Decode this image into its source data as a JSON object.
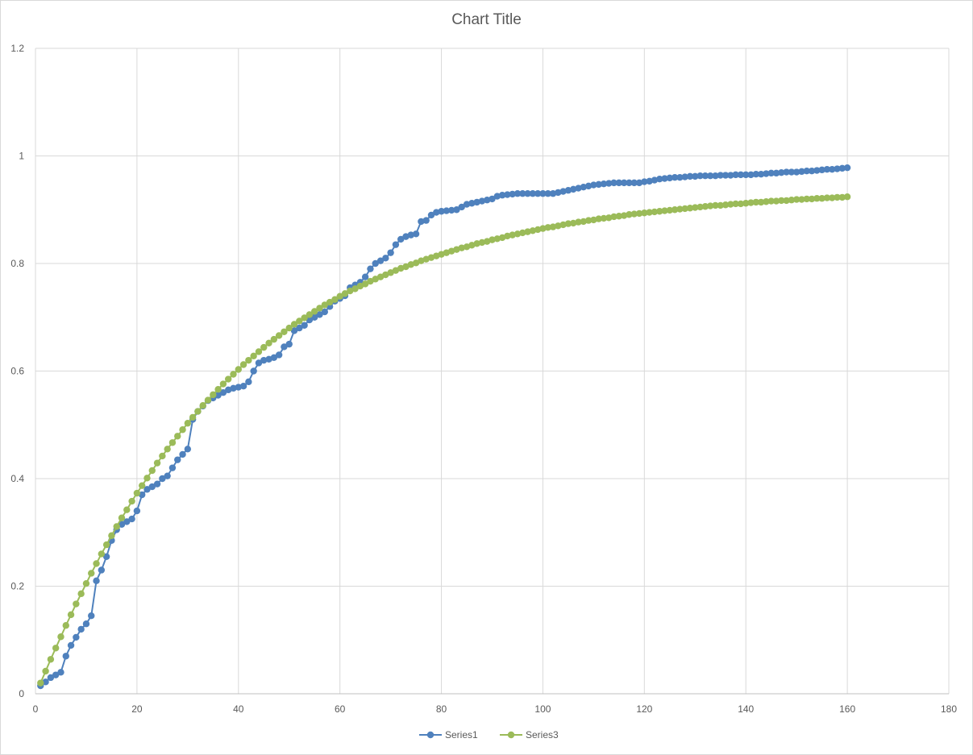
{
  "chart_data": {
    "type": "line",
    "title": "Chart Title",
    "xlabel": "",
    "ylabel": "",
    "xlim": [
      0,
      180
    ],
    "ylim": [
      0,
      1.2
    ],
    "x_ticks": [
      0,
      20,
      40,
      60,
      80,
      100,
      120,
      140,
      160,
      180
    ],
    "y_ticks": [
      0,
      0.2,
      0.4,
      0.6,
      0.8,
      1,
      1.2
    ],
    "x_tick_labels": [
      "0",
      "20",
      "40",
      "60",
      "80",
      "100",
      "120",
      "140",
      "160",
      "180"
    ],
    "y_tick_labels": [
      "0",
      "0.2",
      "0.4",
      "0.6",
      "0.8",
      "1",
      "1.2"
    ],
    "grid": true,
    "legend_position": "bottom",
    "series": [
      {
        "name": "Series1",
        "color": "#4f81bd",
        "points": [
          [
            1,
            0.015
          ],
          [
            2,
            0.022
          ],
          [
            3,
            0.03
          ],
          [
            4,
            0.035
          ],
          [
            5,
            0.04
          ],
          [
            6,
            0.07
          ],
          [
            7,
            0.09
          ],
          [
            8,
            0.105
          ],
          [
            9,
            0.12
          ],
          [
            10,
            0.13
          ],
          [
            11,
            0.145
          ],
          [
            12,
            0.21
          ],
          [
            13,
            0.23
          ],
          [
            14,
            0.255
          ],
          [
            15,
            0.285
          ],
          [
            16,
            0.305
          ],
          [
            17,
            0.315
          ],
          [
            18,
            0.32
          ],
          [
            19,
            0.325
          ],
          [
            20,
            0.34
          ],
          [
            21,
            0.37
          ],
          [
            22,
            0.38
          ],
          [
            23,
            0.385
          ],
          [
            24,
            0.39
          ],
          [
            25,
            0.4
          ],
          [
            26,
            0.405
          ],
          [
            27,
            0.42
          ],
          [
            28,
            0.435
          ],
          [
            29,
            0.445
          ],
          [
            30,
            0.455
          ],
          [
            31,
            0.51
          ],
          [
            32,
            0.525
          ],
          [
            33,
            0.535
          ],
          [
            34,
            0.545
          ],
          [
            35,
            0.55
          ],
          [
            36,
            0.555
          ],
          [
            37,
            0.56
          ],
          [
            38,
            0.565
          ],
          [
            39,
            0.568
          ],
          [
            40,
            0.57
          ],
          [
            41,
            0.572
          ],
          [
            42,
            0.58
          ],
          [
            43,
            0.6
          ],
          [
            44,
            0.615
          ],
          [
            45,
            0.62
          ],
          [
            46,
            0.622
          ],
          [
            47,
            0.625
          ],
          [
            48,
            0.63
          ],
          [
            49,
            0.645
          ],
          [
            50,
            0.65
          ],
          [
            51,
            0.675
          ],
          [
            52,
            0.68
          ],
          [
            53,
            0.685
          ],
          [
            54,
            0.695
          ],
          [
            55,
            0.7
          ],
          [
            56,
            0.705
          ],
          [
            57,
            0.71
          ],
          [
            58,
            0.72
          ],
          [
            59,
            0.73
          ],
          [
            60,
            0.735
          ],
          [
            61,
            0.74
          ],
          [
            62,
            0.755
          ],
          [
            63,
            0.76
          ],
          [
            64,
            0.765
          ],
          [
            65,
            0.775
          ],
          [
            66,
            0.79
          ],
          [
            67,
            0.8
          ],
          [
            68,
            0.805
          ],
          [
            69,
            0.81
          ],
          [
            70,
            0.82
          ],
          [
            71,
            0.835
          ],
          [
            72,
            0.845
          ],
          [
            73,
            0.85
          ],
          [
            74,
            0.853
          ],
          [
            75,
            0.855
          ],
          [
            76,
            0.878
          ],
          [
            77,
            0.88
          ],
          [
            78,
            0.89
          ],
          [
            79,
            0.895
          ],
          [
            80,
            0.897
          ],
          [
            81,
            0.898
          ],
          [
            82,
            0.899
          ],
          [
            83,
            0.9
          ],
          [
            84,
            0.905
          ],
          [
            85,
            0.91
          ],
          [
            86,
            0.912
          ],
          [
            87,
            0.914
          ],
          [
            88,
            0.916
          ],
          [
            89,
            0.918
          ],
          [
            90,
            0.92
          ],
          [
            91,
            0.925
          ],
          [
            92,
            0.927
          ],
          [
            93,
            0.928
          ],
          [
            94,
            0.929
          ],
          [
            95,
            0.93
          ],
          [
            96,
            0.93
          ],
          [
            97,
            0.93
          ],
          [
            98,
            0.93
          ],
          [
            99,
            0.93
          ],
          [
            100,
            0.93
          ],
          [
            101,
            0.93
          ],
          [
            102,
            0.93
          ],
          [
            103,
            0.932
          ],
          [
            104,
            0.934
          ],
          [
            105,
            0.936
          ],
          [
            106,
            0.938
          ],
          [
            107,
            0.94
          ],
          [
            108,
            0.942
          ],
          [
            109,
            0.944
          ],
          [
            110,
            0.946
          ],
          [
            111,
            0.947
          ],
          [
            112,
            0.948
          ],
          [
            113,
            0.949
          ],
          [
            114,
            0.95
          ],
          [
            115,
            0.95
          ],
          [
            116,
            0.95
          ],
          [
            117,
            0.95
          ],
          [
            118,
            0.95
          ],
          [
            119,
            0.95
          ],
          [
            120,
            0.952
          ],
          [
            121,
            0.953
          ],
          [
            122,
            0.955
          ],
          [
            123,
            0.957
          ],
          [
            124,
            0.958
          ],
          [
            125,
            0.959
          ],
          [
            126,
            0.96
          ],
          [
            127,
            0.96
          ],
          [
            128,
            0.961
          ],
          [
            129,
            0.962
          ],
          [
            130,
            0.962
          ],
          [
            131,
            0.963
          ],
          [
            132,
            0.963
          ],
          [
            133,
            0.963
          ],
          [
            134,
            0.963
          ],
          [
            135,
            0.964
          ],
          [
            136,
            0.964
          ],
          [
            137,
            0.964
          ],
          [
            138,
            0.965
          ],
          [
            139,
            0.965
          ],
          [
            140,
            0.965
          ],
          [
            141,
            0.965
          ],
          [
            142,
            0.966
          ],
          [
            143,
            0.966
          ],
          [
            144,
            0.967
          ],
          [
            145,
            0.968
          ],
          [
            146,
            0.968
          ],
          [
            147,
            0.969
          ],
          [
            148,
            0.97
          ],
          [
            149,
            0.97
          ],
          [
            150,
            0.97
          ],
          [
            151,
            0.971
          ],
          [
            152,
            0.972
          ],
          [
            153,
            0.972
          ],
          [
            154,
            0.973
          ],
          [
            155,
            0.974
          ],
          [
            156,
            0.975
          ],
          [
            157,
            0.975
          ],
          [
            158,
            0.976
          ],
          [
            159,
            0.977
          ],
          [
            160,
            0.978
          ]
        ]
      },
      {
        "name": "Series3",
        "color": "#9bbb59",
        "points": [
          [
            1,
            0.02
          ],
          [
            2,
            0.042
          ],
          [
            3,
            0.064
          ],
          [
            4,
            0.085
          ],
          [
            5,
            0.106
          ],
          [
            6,
            0.127
          ],
          [
            7,
            0.147
          ],
          [
            8,
            0.167
          ],
          [
            9,
            0.186
          ],
          [
            10,
            0.205
          ],
          [
            11,
            0.224
          ],
          [
            12,
            0.242
          ],
          [
            13,
            0.26
          ],
          [
            14,
            0.277
          ],
          [
            15,
            0.294
          ],
          [
            16,
            0.311
          ],
          [
            17,
            0.327
          ],
          [
            18,
            0.342
          ],
          [
            19,
            0.358
          ],
          [
            20,
            0.373
          ],
          [
            21,
            0.387
          ],
          [
            22,
            0.401
          ],
          [
            23,
            0.415
          ],
          [
            24,
            0.429
          ],
          [
            25,
            0.442
          ],
          [
            26,
            0.455
          ],
          [
            27,
            0.467
          ],
          [
            28,
            0.479
          ],
          [
            29,
            0.491
          ],
          [
            30,
            0.503
          ],
          [
            31,
            0.514
          ],
          [
            32,
            0.525
          ],
          [
            33,
            0.536
          ],
          [
            34,
            0.546
          ],
          [
            35,
            0.556
          ],
          [
            36,
            0.566
          ],
          [
            37,
            0.576
          ],
          [
            38,
            0.585
          ],
          [
            39,
            0.594
          ],
          [
            40,
            0.603
          ],
          [
            41,
            0.612
          ],
          [
            42,
            0.62
          ],
          [
            43,
            0.628
          ],
          [
            44,
            0.636
          ],
          [
            45,
            0.644
          ],
          [
            46,
            0.652
          ],
          [
            47,
            0.659
          ],
          [
            48,
            0.666
          ],
          [
            49,
            0.673
          ],
          [
            50,
            0.68
          ],
          [
            51,
            0.687
          ],
          [
            52,
            0.693
          ],
          [
            53,
            0.699
          ],
          [
            54,
            0.705
          ],
          [
            55,
            0.711
          ],
          [
            56,
            0.717
          ],
          [
            57,
            0.723
          ],
          [
            58,
            0.728
          ],
          [
            59,
            0.733
          ],
          [
            60,
            0.739
          ],
          [
            61,
            0.744
          ],
          [
            62,
            0.749
          ],
          [
            63,
            0.753
          ],
          [
            64,
            0.758
          ],
          [
            65,
            0.762
          ],
          [
            66,
            0.767
          ],
          [
            67,
            0.771
          ],
          [
            68,
            0.775
          ],
          [
            69,
            0.779
          ],
          [
            70,
            0.783
          ],
          [
            71,
            0.787
          ],
          [
            72,
            0.791
          ],
          [
            73,
            0.794
          ],
          [
            74,
            0.798
          ],
          [
            75,
            0.801
          ],
          [
            76,
            0.805
          ],
          [
            77,
            0.808
          ],
          [
            78,
            0.811
          ],
          [
            79,
            0.814
          ],
          [
            80,
            0.817
          ],
          [
            81,
            0.82
          ],
          [
            82,
            0.823
          ],
          [
            83,
            0.826
          ],
          [
            84,
            0.829
          ],
          [
            85,
            0.831
          ],
          [
            86,
            0.834
          ],
          [
            87,
            0.837
          ],
          [
            88,
            0.839
          ],
          [
            89,
            0.841
          ],
          [
            90,
            0.844
          ],
          [
            91,
            0.846
          ],
          [
            92,
            0.848
          ],
          [
            93,
            0.851
          ],
          [
            94,
            0.853
          ],
          [
            95,
            0.855
          ],
          [
            96,
            0.857
          ],
          [
            97,
            0.859
          ],
          [
            98,
            0.861
          ],
          [
            99,
            0.863
          ],
          [
            100,
            0.865
          ],
          [
            101,
            0.867
          ],
          [
            102,
            0.868
          ],
          [
            103,
            0.87
          ],
          [
            104,
            0.872
          ],
          [
            105,
            0.874
          ],
          [
            106,
            0.875
          ],
          [
            107,
            0.877
          ],
          [
            108,
            0.878
          ],
          [
            109,
            0.88
          ],
          [
            110,
            0.881
          ],
          [
            111,
            0.883
          ],
          [
            112,
            0.884
          ],
          [
            113,
            0.885
          ],
          [
            114,
            0.887
          ],
          [
            115,
            0.888
          ],
          [
            116,
            0.889
          ],
          [
            117,
            0.891
          ],
          [
            118,
            0.892
          ],
          [
            119,
            0.893
          ],
          [
            120,
            0.894
          ],
          [
            121,
            0.895
          ],
          [
            122,
            0.896
          ],
          [
            123,
            0.897
          ],
          [
            124,
            0.898
          ],
          [
            125,
            0.899
          ],
          [
            126,
            0.9
          ],
          [
            127,
            0.901
          ],
          [
            128,
            0.902
          ],
          [
            129,
            0.903
          ],
          [
            130,
            0.904
          ],
          [
            131,
            0.905
          ],
          [
            132,
            0.906
          ],
          [
            133,
            0.907
          ],
          [
            134,
            0.908
          ],
          [
            135,
            0.908
          ],
          [
            136,
            0.909
          ],
          [
            137,
            0.91
          ],
          [
            138,
            0.911
          ],
          [
            139,
            0.911
          ],
          [
            140,
            0.912
          ],
          [
            141,
            0.913
          ],
          [
            142,
            0.914
          ],
          [
            143,
            0.914
          ],
          [
            144,
            0.915
          ],
          [
            145,
            0.916
          ],
          [
            146,
            0.916
          ],
          [
            147,
            0.917
          ],
          [
            148,
            0.917
          ],
          [
            149,
            0.918
          ],
          [
            150,
            0.919
          ],
          [
            151,
            0.919
          ],
          [
            152,
            0.92
          ],
          [
            153,
            0.92
          ],
          [
            154,
            0.921
          ],
          [
            155,
            0.921
          ],
          [
            156,
            0.922
          ],
          [
            157,
            0.922
          ],
          [
            158,
            0.923
          ],
          [
            159,
            0.923
          ],
          [
            160,
            0.924
          ]
        ]
      }
    ]
  }
}
